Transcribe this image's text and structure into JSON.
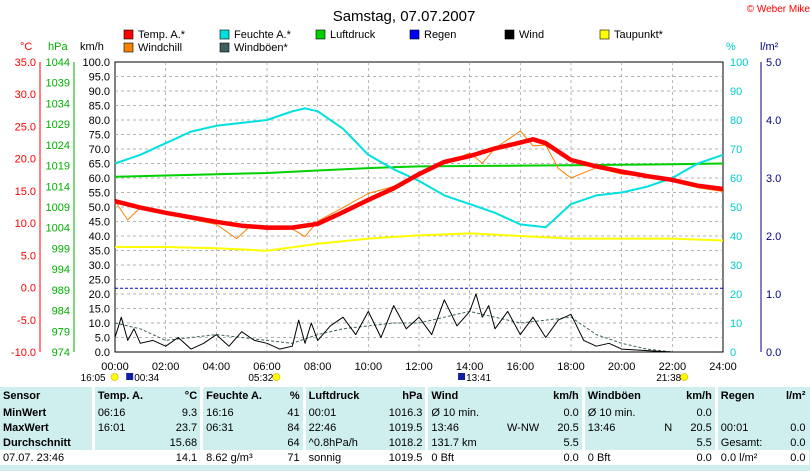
{
  "chart_data": {
    "type": "line",
    "title": "Samstag, 07.07.2007",
    "copyright": "© Weber Mike",
    "x_ticks": [
      "00:00",
      "02:00",
      "04:00",
      "06:00",
      "08:00",
      "10:00",
      "12:00",
      "14:00",
      "16:00",
      "18:00",
      "20:00",
      "22:00",
      "24:00"
    ],
    "xlim": [
      0,
      24
    ],
    "axes": {
      "temp": {
        "unit": "°C",
        "ticks": [
          "35.0",
          "30.0",
          "25.0",
          "20.0",
          "15.0",
          "10.0",
          "5.0",
          "0.0",
          "-5.0",
          "-10.0"
        ],
        "range": [
          -10,
          35
        ],
        "color": "#ff0000"
      },
      "pressure": {
        "unit": "hPa",
        "ticks": [
          "1044",
          "1039",
          "1034",
          "1029",
          "1024",
          "1019",
          "1014",
          "1009",
          "1004",
          "999",
          "994",
          "989",
          "984",
          "979",
          "974"
        ],
        "range": [
          974,
          1044
        ],
        "color": "#00b000"
      },
      "wind": {
        "unit": "km/h",
        "ticks": [
          "100.0",
          "95.0",
          "90.0",
          "85.0",
          "80.0",
          "75.0",
          "70.0",
          "65.0",
          "60.0",
          "55.0",
          "50.0",
          "45.0",
          "40.0",
          "35.0",
          "30.0",
          "25.0",
          "20.0",
          "15.0",
          "10.0",
          "5.0",
          "0.0"
        ],
        "range": [
          0,
          100
        ],
        "color": "#000000"
      },
      "humidity": {
        "unit": "%",
        "ticks": [
          "100",
          "90",
          "80",
          "70",
          "60",
          "50",
          "40",
          "30",
          "20",
          "10",
          "0"
        ],
        "range": [
          0,
          100
        ],
        "color": "#00cccc"
      },
      "rain": {
        "unit": "l/m²",
        "ticks": [
          "5.0",
          "4.0",
          "3.0",
          "2.0",
          "1.0",
          "0.0"
        ],
        "range": [
          0,
          5
        ],
        "color": "#000080"
      }
    },
    "legend": [
      {
        "name": "Temp. A.*",
        "color": "#ff0000"
      },
      {
        "name": "Feuchte A.*",
        "color": "#00e0e0"
      },
      {
        "name": "Luftdruck",
        "color": "#00d000"
      },
      {
        "name": "Regen",
        "color": "#0000ff"
      },
      {
        "name": "Wind",
        "color": "#000000"
      },
      {
        "name": "Taupunkt*",
        "color": "#ffff00"
      },
      {
        "name": "Windchill",
        "color": "#ff8000"
      },
      {
        "name": "Windböen*",
        "color": "#406060"
      }
    ],
    "series": [
      {
        "name": "Temp. A.*",
        "axis": "temp",
        "color": "#ff0000",
        "x": [
          0,
          1,
          2,
          3,
          4,
          5,
          6,
          7,
          8,
          9,
          10,
          11,
          12,
          13,
          14,
          15,
          16,
          16.5,
          17,
          18,
          19,
          20,
          21,
          22,
          23,
          24
        ],
        "y": [
          13.4,
          12.4,
          11.6,
          10.9,
          10.2,
          9.6,
          9.3,
          9.3,
          9.9,
          11.7,
          13.6,
          15.4,
          17.6,
          19.5,
          20.4,
          21.6,
          22.5,
          23.0,
          22.4,
          19.8,
          18.8,
          18.0,
          17.3,
          16.7,
          15.8,
          15.3
        ]
      },
      {
        "name": "Windchill",
        "axis": "temp",
        "color": "#ff8000",
        "x": [
          0,
          0.5,
          1,
          2,
          3,
          4,
          4.8,
          5.3,
          6,
          7,
          7.5,
          8,
          9,
          10,
          11,
          12,
          13,
          14,
          14.5,
          15,
          16,
          16.5,
          17,
          17.5,
          18,
          19,
          20,
          21,
          22,
          23,
          24
        ],
        "y": [
          13.4,
          10.5,
          12.4,
          11.4,
          10.6,
          9.8,
          7.6,
          9.4,
          9.0,
          9.1,
          7.9,
          10.3,
          12.4,
          14.6,
          15.7,
          17.6,
          19.2,
          20.9,
          19.3,
          21.6,
          24.3,
          22.0,
          22.1,
          18.5,
          17.0,
          18.6,
          17.6,
          17.3,
          16.5,
          15.5,
          14.9
        ]
      },
      {
        "name": "Taupunkt*",
        "axis": "temp",
        "color": "#ffff00",
        "x": [
          0,
          2,
          4,
          6,
          8,
          10,
          12,
          14,
          16,
          18,
          20,
          22,
          24
        ],
        "y": [
          6.3,
          6.3,
          6.1,
          5.7,
          6.8,
          7.6,
          8.1,
          8.4,
          8.0,
          7.6,
          7.6,
          7.6,
          7.3
        ]
      },
      {
        "name": "Feuchte A.*",
        "axis": "humidity",
        "color": "#00e0e0",
        "x": [
          0,
          1,
          2,
          3,
          4,
          5,
          6,
          7,
          7.5,
          8,
          9,
          10,
          11,
          12,
          13,
          14,
          15,
          16,
          17,
          18,
          19,
          20,
          21,
          22,
          23,
          24
        ],
        "y": [
          65,
          68,
          72,
          76,
          78,
          79,
          80,
          83,
          84,
          83,
          77,
          68,
          63,
          59,
          54,
          51,
          48,
          44,
          43,
          51,
          54,
          55,
          57,
          60,
          65,
          68
        ]
      },
      {
        "name": "Luftdruck",
        "axis": "pressure",
        "color": "#00d000",
        "x": [
          0,
          2,
          4,
          6,
          8,
          10,
          12,
          14,
          16,
          18,
          20,
          22,
          24
        ],
        "y": [
          1016.3,
          1016.6,
          1016.9,
          1017.2,
          1017.8,
          1018.4,
          1018.8,
          1018.9,
          1019.0,
          1019.1,
          1019.2,
          1019.3,
          1019.5
        ]
      },
      {
        "name": "Wind",
        "axis": "wind",
        "color": "#000000",
        "x": [
          0,
          0.25,
          0.5,
          0.75,
          1,
          1.5,
          2,
          2.5,
          3,
          3.5,
          4,
          4.5,
          5,
          5.5,
          6,
          6.5,
          7,
          7.25,
          7.5,
          7.75,
          8,
          8.5,
          9,
          9.5,
          10,
          10.5,
          11,
          11.5,
          12,
          12.5,
          13,
          13.5,
          14,
          14.25,
          14.5,
          14.75,
          15,
          15.5,
          16,
          16.5,
          17,
          17.5,
          18,
          18.5,
          19,
          19.5,
          20,
          21,
          22,
          23,
          24
        ],
        "y": [
          5,
          12,
          4,
          8,
          3,
          4,
          2,
          5,
          1,
          3,
          6,
          2,
          7,
          4,
          3,
          1,
          2,
          11,
          3,
          10,
          4,
          9,
          12,
          6,
          14,
          5,
          16,
          8,
          12,
          6,
          18,
          9,
          14,
          20,
          12,
          16,
          8,
          14,
          6,
          12,
          5,
          11,
          13,
          4,
          2,
          3,
          1,
          0.5,
          0,
          0,
          0
        ]
      },
      {
        "name": "Windböen*",
        "axis": "wind",
        "color": "#406060",
        "x": [
          0,
          1,
          2,
          3,
          4,
          5,
          6,
          7,
          8,
          9,
          10,
          11,
          12,
          13,
          14,
          15,
          16,
          17,
          18,
          19,
          20,
          21,
          22,
          23,
          24
        ],
        "y": [
          10,
          8,
          4,
          5,
          6,
          5,
          4,
          3,
          6,
          8,
          9,
          10,
          10,
          12,
          14,
          12,
          10,
          11,
          12,
          6,
          3,
          1,
          0,
          0,
          0
        ]
      }
    ],
    "rain_zero_line": 1.1,
    "x_extra_labels": [
      {
        "text": "16:05",
        "x": -1.2,
        "marker": "sun-icon"
      },
      {
        "text": "00:34",
        "x": 0.6,
        "marker": "moon-icon"
      },
      {
        "text": "05:32",
        "x": 5.5,
        "marker": "sun-icon"
      },
      {
        "text": "13:41",
        "x": 13.7,
        "marker": "moon-icon"
      },
      {
        "text": "21:38",
        "x": 21.6,
        "marker": "sun-icon"
      }
    ]
  },
  "stats": {
    "headers": {
      "sensor": "Sensor",
      "temp": "Temp. A.",
      "temp_unit": "°C",
      "hum": "Feuchte A.",
      "hum_unit": "%",
      "press": "Luftdruck",
      "press_unit": "hPa",
      "wind": "Wind",
      "wind_unit": "km/h",
      "gust": "Windböen",
      "gust_unit": "km/h",
      "rain": "Regen",
      "rain_unit": "l/m²"
    },
    "rows": [
      {
        "label": "MinWert",
        "t_time": "06:16",
        "t_val": "9.3",
        "h_time": "16:16",
        "h_val": "41",
        "p_time": "00:01",
        "p_val": "1016.3",
        "w_time": "Ø 10 min.",
        "w_dir": "",
        "w_val": "0.0",
        "g_time": "Ø 10 min.",
        "g_dir": "",
        "g_val": "0.0",
        "r_time": "",
        "r_val": ""
      },
      {
        "label": "MaxWert",
        "t_time": "16:01",
        "t_val": "23.7",
        "h_time": "06:31",
        "h_val": "84",
        "p_time": "22:46",
        "p_val": "1019.5",
        "w_time": "13:46",
        "w_dir": "W-NW",
        "w_val": "20.5",
        "g_time": "13:46",
        "g_dir": "N",
        "g_val": "20.5",
        "r_time": "00:01",
        "r_val": "0.0"
      },
      {
        "label": "Durchschnitt",
        "t_time": "",
        "t_val": "15.68",
        "h_time": "",
        "h_val": "64",
        "p_time": "^0.8hPa/h",
        "p_val": "1018.2",
        "w_time": "131.7 km",
        "w_dir": "",
        "w_val": "5.5",
        "g_time": "",
        "g_dir": "",
        "g_val": "5.5",
        "r_time": "Gesamt:",
        "r_val": "0.0"
      },
      {
        "label": "07.07. 23:46",
        "t_time": "",
        "t_val": "14.1",
        "h_time": "8.62 g/m³",
        "h_val": "71",
        "p_time": "sonnig",
        "p_val": "1019.5",
        "w_time": "0 Bft",
        "w_dir": "",
        "w_val": "0.0",
        "g_time": "0 Bft",
        "g_dir": "",
        "g_val": "0.0",
        "r_time": "0.0 l/m²",
        "r_val": "0.0"
      }
    ]
  }
}
